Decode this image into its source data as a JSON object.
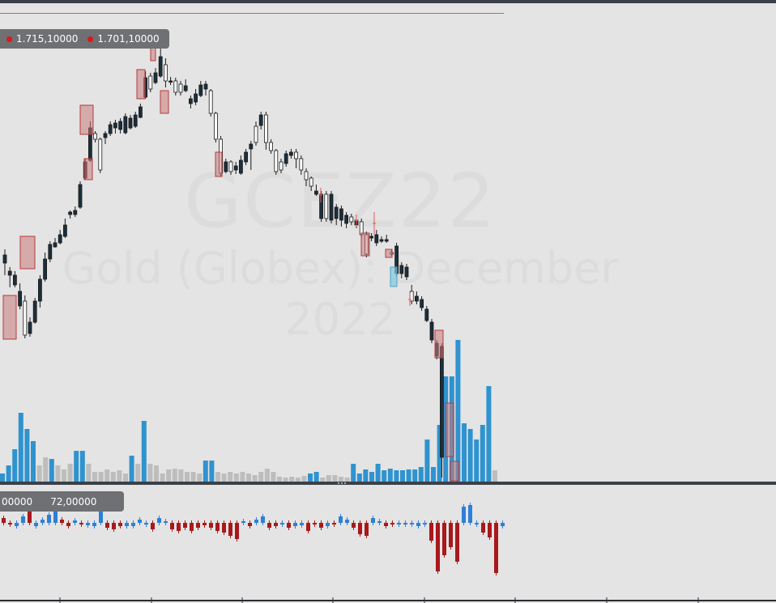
{
  "watermark": {
    "symbol": "GCEZ22",
    "name": "Gold (Globex): December 2022"
  },
  "price_legend": {
    "values": [
      "1.715,10000",
      "1.701,10000"
    ],
    "dot_color": "#e01515"
  },
  "oscillator_legend": {
    "values": [
      "00000",
      "72,00000"
    ]
  },
  "colors": {
    "up_candle_fill": "#ffffff",
    "down_candle_fill": "#1b2f3c",
    "volume_high": "#2f93cf",
    "volume_low": "#bdbdbd",
    "osc_positive": "#2f7fd6",
    "osc_negative": "#a8191b",
    "marker_box": "#b83a3a",
    "marker_box_fill": "#c97a7a",
    "highlight_box": "#7fc7e0",
    "reference_line": "#e05a5a",
    "pane_separator": "#3b4048"
  },
  "chart_data": {
    "type": "candlestick",
    "title": "",
    "candles": [
      [
        0,
        325,
        315,
        308,
        340
      ],
      [
        0,
        335,
        340,
        330,
        355
      ],
      [
        0,
        352,
        340,
        335,
        355
      ],
      [
        0,
        378,
        360,
        350,
        382
      ],
      [
        1,
        372,
        414,
        365,
        418
      ],
      [
        0,
        412,
        398,
        392,
        416
      ],
      [
        0,
        398,
        372,
        368,
        400
      ],
      [
        0,
        372,
        345,
        340,
        380
      ],
      [
        0,
        345,
        320,
        312,
        348
      ],
      [
        0,
        320,
        302,
        298,
        324
      ],
      [
        0,
        305,
        300,
        294,
        306
      ],
      [
        0,
        300,
        290,
        284,
        302
      ],
      [
        0,
        292,
        278,
        270,
        294
      ],
      [
        0,
        265,
        262,
        260,
        270
      ],
      [
        0,
        265,
        260,
        255,
        268
      ],
      [
        0,
        256,
        228,
        224,
        258
      ],
      [
        0,
        220,
        200,
        196,
        222
      ],
      [
        0,
        198,
        158,
        150,
        200
      ],
      [
        1,
        165,
        172,
        162,
        176
      ],
      [
        1,
        172,
        210,
        170,
        214
      ],
      [
        0,
        170,
        165,
        162,
        178
      ],
      [
        0,
        165,
        154,
        150,
        168
      ],
      [
        0,
        158,
        152,
        148,
        165
      ],
      [
        0,
        160,
        150,
        146,
        165
      ],
      [
        0,
        164,
        144,
        140,
        166
      ],
      [
        0,
        158,
        146,
        142,
        160
      ],
      [
        0,
        156,
        142,
        138,
        158
      ],
      [
        0,
        145,
        132,
        128,
        146
      ],
      [
        0,
        120,
        96,
        88,
        122
      ],
      [
        1,
        94,
        110,
        90,
        114
      ],
      [
        0,
        102,
        90,
        84,
        104
      ],
      [
        0,
        94,
        70,
        60,
        96
      ],
      [
        1,
        80,
        100,
        72,
        108
      ],
      [
        0,
        100,
        100,
        95,
        105
      ],
      [
        1,
        100,
        114,
        96,
        118
      ],
      [
        1,
        104,
        114,
        100,
        118
      ],
      [
        0,
        112,
        106,
        98,
        114
      ],
      [
        0,
        128,
        122,
        118,
        134
      ],
      [
        0,
        126,
        116,
        110,
        130
      ],
      [
        0,
        118,
        105,
        100,
        120
      ],
      [
        0,
        110,
        104,
        100,
        118
      ],
      [
        1,
        112,
        140,
        110,
        144
      ],
      [
        1,
        140,
        172,
        138,
        176
      ],
      [
        1,
        172,
        214,
        168,
        218
      ],
      [
        0,
        212,
        200,
        196,
        214
      ],
      [
        1,
        200,
        212,
        198,
        216
      ],
      [
        0,
        210,
        205,
        200,
        215
      ],
      [
        0,
        214,
        198,
        192,
        216
      ],
      [
        0,
        200,
        188,
        184,
        204
      ],
      [
        0,
        184,
        178,
        174,
        210
      ],
      [
        1,
        176,
        156,
        150,
        180
      ],
      [
        0,
        155,
        142,
        138,
        160
      ],
      [
        1,
        142,
        176,
        138,
        185
      ],
      [
        1,
        176,
        186,
        172,
        190
      ],
      [
        1,
        186,
        212,
        184,
        216
      ],
      [
        1,
        210,
        200,
        196,
        214
      ],
      [
        0,
        202,
        190,
        186,
        206
      ],
      [
        0,
        192,
        188,
        184,
        196
      ],
      [
        1,
        188,
        196,
        184,
        208
      ],
      [
        1,
        196,
        210,
        192,
        216
      ],
      [
        1,
        212,
        222,
        208,
        230
      ],
      [
        1,
        220,
        230,
        218,
        236
      ],
      [
        0,
        236,
        240,
        228,
        242
      ],
      [
        0,
        240,
        270,
        236,
        274
      ],
      [
        1,
        270,
        240,
        236,
        274
      ],
      [
        0,
        240,
        272,
        236,
        276
      ],
      [
        0,
        256,
        270,
        252,
        278
      ],
      [
        0,
        258,
        272,
        254,
        280
      ],
      [
        0,
        266,
        276,
        262,
        282
      ],
      [
        1,
        268,
        274,
        264,
        278
      ],
      [
        0,
        272,
        278,
        266,
        282
      ],
      [
        1,
        274,
        290,
        270,
        294
      ],
      [
        1,
        290,
        314,
        286,
        318
      ],
      [
        0,
        292,
        294,
        288,
        298
      ],
      [
        0,
        290,
        300,
        284,
        304
      ],
      [
        0,
        298,
        296,
        292,
        300
      ],
      [
        0,
        296,
        298,
        290,
        300
      ],
      [
        1,
        312,
        314,
        308,
        316
      ],
      [
        0,
        304,
        338,
        300,
        342
      ],
      [
        0,
        328,
        338,
        324,
        344
      ],
      [
        0,
        330,
        342,
        326,
        346
      ],
      [
        1,
        360,
        372,
        352,
        376
      ],
      [
        0,
        366,
        372,
        360,
        376
      ],
      [
        0,
        370,
        380,
        366,
        384
      ],
      [
        0,
        382,
        396,
        378,
        398
      ],
      [
        0,
        398,
        420,
        394,
        424
      ],
      [
        0,
        424,
        440,
        420,
        444
      ],
      [
        0,
        428,
        565,
        424,
        590
      ]
    ],
    "volume": [
      [
        1,
        10
      ],
      [
        1,
        20
      ],
      [
        1,
        40
      ],
      [
        1,
        85
      ],
      [
        1,
        65
      ],
      [
        1,
        50
      ],
      [
        0,
        20
      ],
      [
        0,
        30
      ],
      [
        1,
        28
      ],
      [
        0,
        20
      ],
      [
        0,
        15
      ],
      [
        0,
        22
      ],
      [
        1,
        38
      ],
      [
        1,
        38
      ],
      [
        0,
        22
      ],
      [
        0,
        12
      ],
      [
        0,
        12
      ],
      [
        0,
        15
      ],
      [
        0,
        12
      ],
      [
        0,
        14
      ],
      [
        0,
        10
      ],
      [
        1,
        32
      ],
      [
        0,
        22
      ],
      [
        1,
        75
      ],
      [
        0,
        22
      ],
      [
        0,
        20
      ],
      [
        0,
        10
      ],
      [
        0,
        15
      ],
      [
        0,
        16
      ],
      [
        0,
        15
      ],
      [
        0,
        12
      ],
      [
        0,
        12
      ],
      [
        0,
        10
      ],
      [
        1,
        26
      ],
      [
        1,
        26
      ],
      [
        0,
        12
      ],
      [
        0,
        10
      ],
      [
        0,
        12
      ],
      [
        0,
        10
      ],
      [
        0,
        12
      ],
      [
        0,
        10
      ],
      [
        0,
        8
      ],
      [
        0,
        12
      ],
      [
        0,
        16
      ],
      [
        0,
        12
      ],
      [
        0,
        6
      ],
      [
        0,
        5
      ],
      [
        0,
        6
      ],
      [
        0,
        5
      ],
      [
        0,
        7
      ],
      [
        1,
        10
      ],
      [
        1,
        12
      ],
      [
        0,
        5
      ],
      [
        0,
        8
      ],
      [
        0,
        8
      ],
      [
        0,
        6
      ],
      [
        0,
        5
      ],
      [
        1,
        22
      ],
      [
        1,
        10
      ],
      [
        1,
        15
      ],
      [
        1,
        12
      ],
      [
        1,
        22
      ],
      [
        1,
        14
      ],
      [
        1,
        16
      ],
      [
        1,
        14
      ],
      [
        1,
        14
      ],
      [
        1,
        15
      ],
      [
        1,
        15
      ],
      [
        1,
        18
      ],
      [
        1,
        52
      ],
      [
        1,
        18
      ],
      [
        1,
        70
      ],
      [
        1,
        130
      ],
      [
        1,
        130
      ],
      [
        1,
        175
      ],
      [
        1,
        72
      ],
      [
        1,
        65
      ],
      [
        1,
        52
      ],
      [
        1,
        70
      ],
      [
        1,
        118
      ],
      [
        0,
        14
      ]
    ],
    "oscillator": [
      [
        -1,
        6
      ],
      [
        -1,
        -2
      ],
      [
        1,
        -4
      ],
      [
        1,
        8
      ],
      [
        -1,
        30
      ],
      [
        1,
        -4
      ],
      [
        1,
        4
      ],
      [
        1,
        10
      ],
      [
        1,
        14
      ],
      [
        -1,
        4
      ],
      [
        -1,
        -4
      ],
      [
        1,
        3
      ],
      [
        -1,
        -2
      ],
      [
        1,
        -3
      ],
      [
        1,
        -4
      ],
      [
        1,
        14
      ],
      [
        -1,
        -6
      ],
      [
        -1,
        -8
      ],
      [
        -1,
        -4
      ],
      [
        1,
        -4
      ],
      [
        1,
        -4
      ],
      [
        1,
        4
      ],
      [
        1,
        -2
      ],
      [
        -1,
        -8
      ],
      [
        1,
        6
      ],
      [
        1,
        2
      ],
      [
        -1,
        -8
      ],
      [
        -1,
        -10
      ],
      [
        -1,
        -6
      ],
      [
        -1,
        -10
      ],
      [
        -1,
        -6
      ],
      [
        -1,
        -3
      ],
      [
        -1,
        -6
      ],
      [
        -1,
        -10
      ],
      [
        -1,
        -12
      ],
      [
        -1,
        -16
      ],
      [
        -1,
        -20
      ],
      [
        1,
        2
      ],
      [
        -1,
        -4
      ],
      [
        1,
        4
      ],
      [
        1,
        8
      ],
      [
        -1,
        -6
      ],
      [
        -1,
        -4
      ],
      [
        1,
        -2
      ],
      [
        -1,
        -6
      ],
      [
        1,
        -4
      ],
      [
        1,
        -3
      ],
      [
        -1,
        -10
      ],
      [
        -1,
        -2
      ],
      [
        -1,
        -6
      ],
      [
        1,
        -4
      ],
      [
        -1,
        -2
      ],
      [
        1,
        8
      ],
      [
        1,
        4
      ],
      [
        -1,
        -6
      ],
      [
        -1,
        -14
      ],
      [
        -1,
        -16
      ],
      [
        1,
        6
      ],
      [
        1,
        2
      ],
      [
        -1,
        -4
      ],
      [
        -1,
        -2
      ],
      [
        1,
        -2
      ],
      [
        1,
        -2
      ],
      [
        1,
        -2
      ],
      [
        1,
        -4
      ],
      [
        1,
        -2
      ],
      [
        -1,
        -22
      ],
      [
        -1,
        -60
      ],
      [
        -1,
        -40
      ],
      [
        -1,
        -30
      ],
      [
        -1,
        -48
      ],
      [
        1,
        20
      ],
      [
        1,
        22
      ],
      [
        1,
        -2
      ],
      [
        -1,
        -12
      ],
      [
        -1,
        -18
      ],
      [
        -1,
        -62
      ],
      [
        1,
        -4
      ]
    ]
  }
}
